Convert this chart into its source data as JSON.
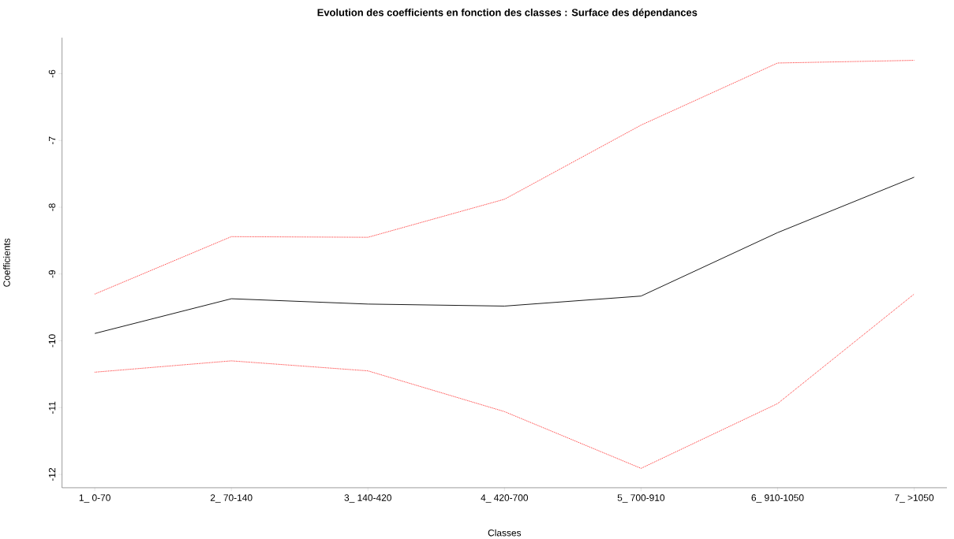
{
  "chart_data": {
    "type": "line",
    "title": "Evolution des coefficients en fonction des classes : Surface des dépendances",
    "xlabel": "Classes",
    "ylabel": "Coefficients",
    "categories": [
      "1_ 0-70",
      "2_ 70-140",
      "3_ 140-420",
      "4_ 420-700",
      "5_ 700-910",
      "6_ 910-1050",
      "7_ >1050"
    ],
    "series": [
      {
        "color": "#000000",
        "line_style": "solid",
        "values": [
          -9.89,
          -9.37,
          -9.45,
          -9.48,
          -9.33,
          -8.38,
          -7.55
        ]
      },
      {
        "color": "#ff0000",
        "line_style": "dotted",
        "values": [
          -9.3,
          -8.44,
          -8.45,
          -7.88,
          -6.77,
          -5.84,
          -5.8
        ]
      },
      {
        "color": "#ff0000",
        "line_style": "dotted",
        "values": [
          -10.47,
          -10.3,
          -10.45,
          -11.06,
          -11.91,
          -10.94,
          -9.3
        ]
      }
    ],
    "ylim": [
      -12.2,
      -5.46
    ],
    "yticks": [
      -12,
      -11,
      -10,
      -9,
      -8,
      -7,
      -6
    ],
    "grid": false
  }
}
